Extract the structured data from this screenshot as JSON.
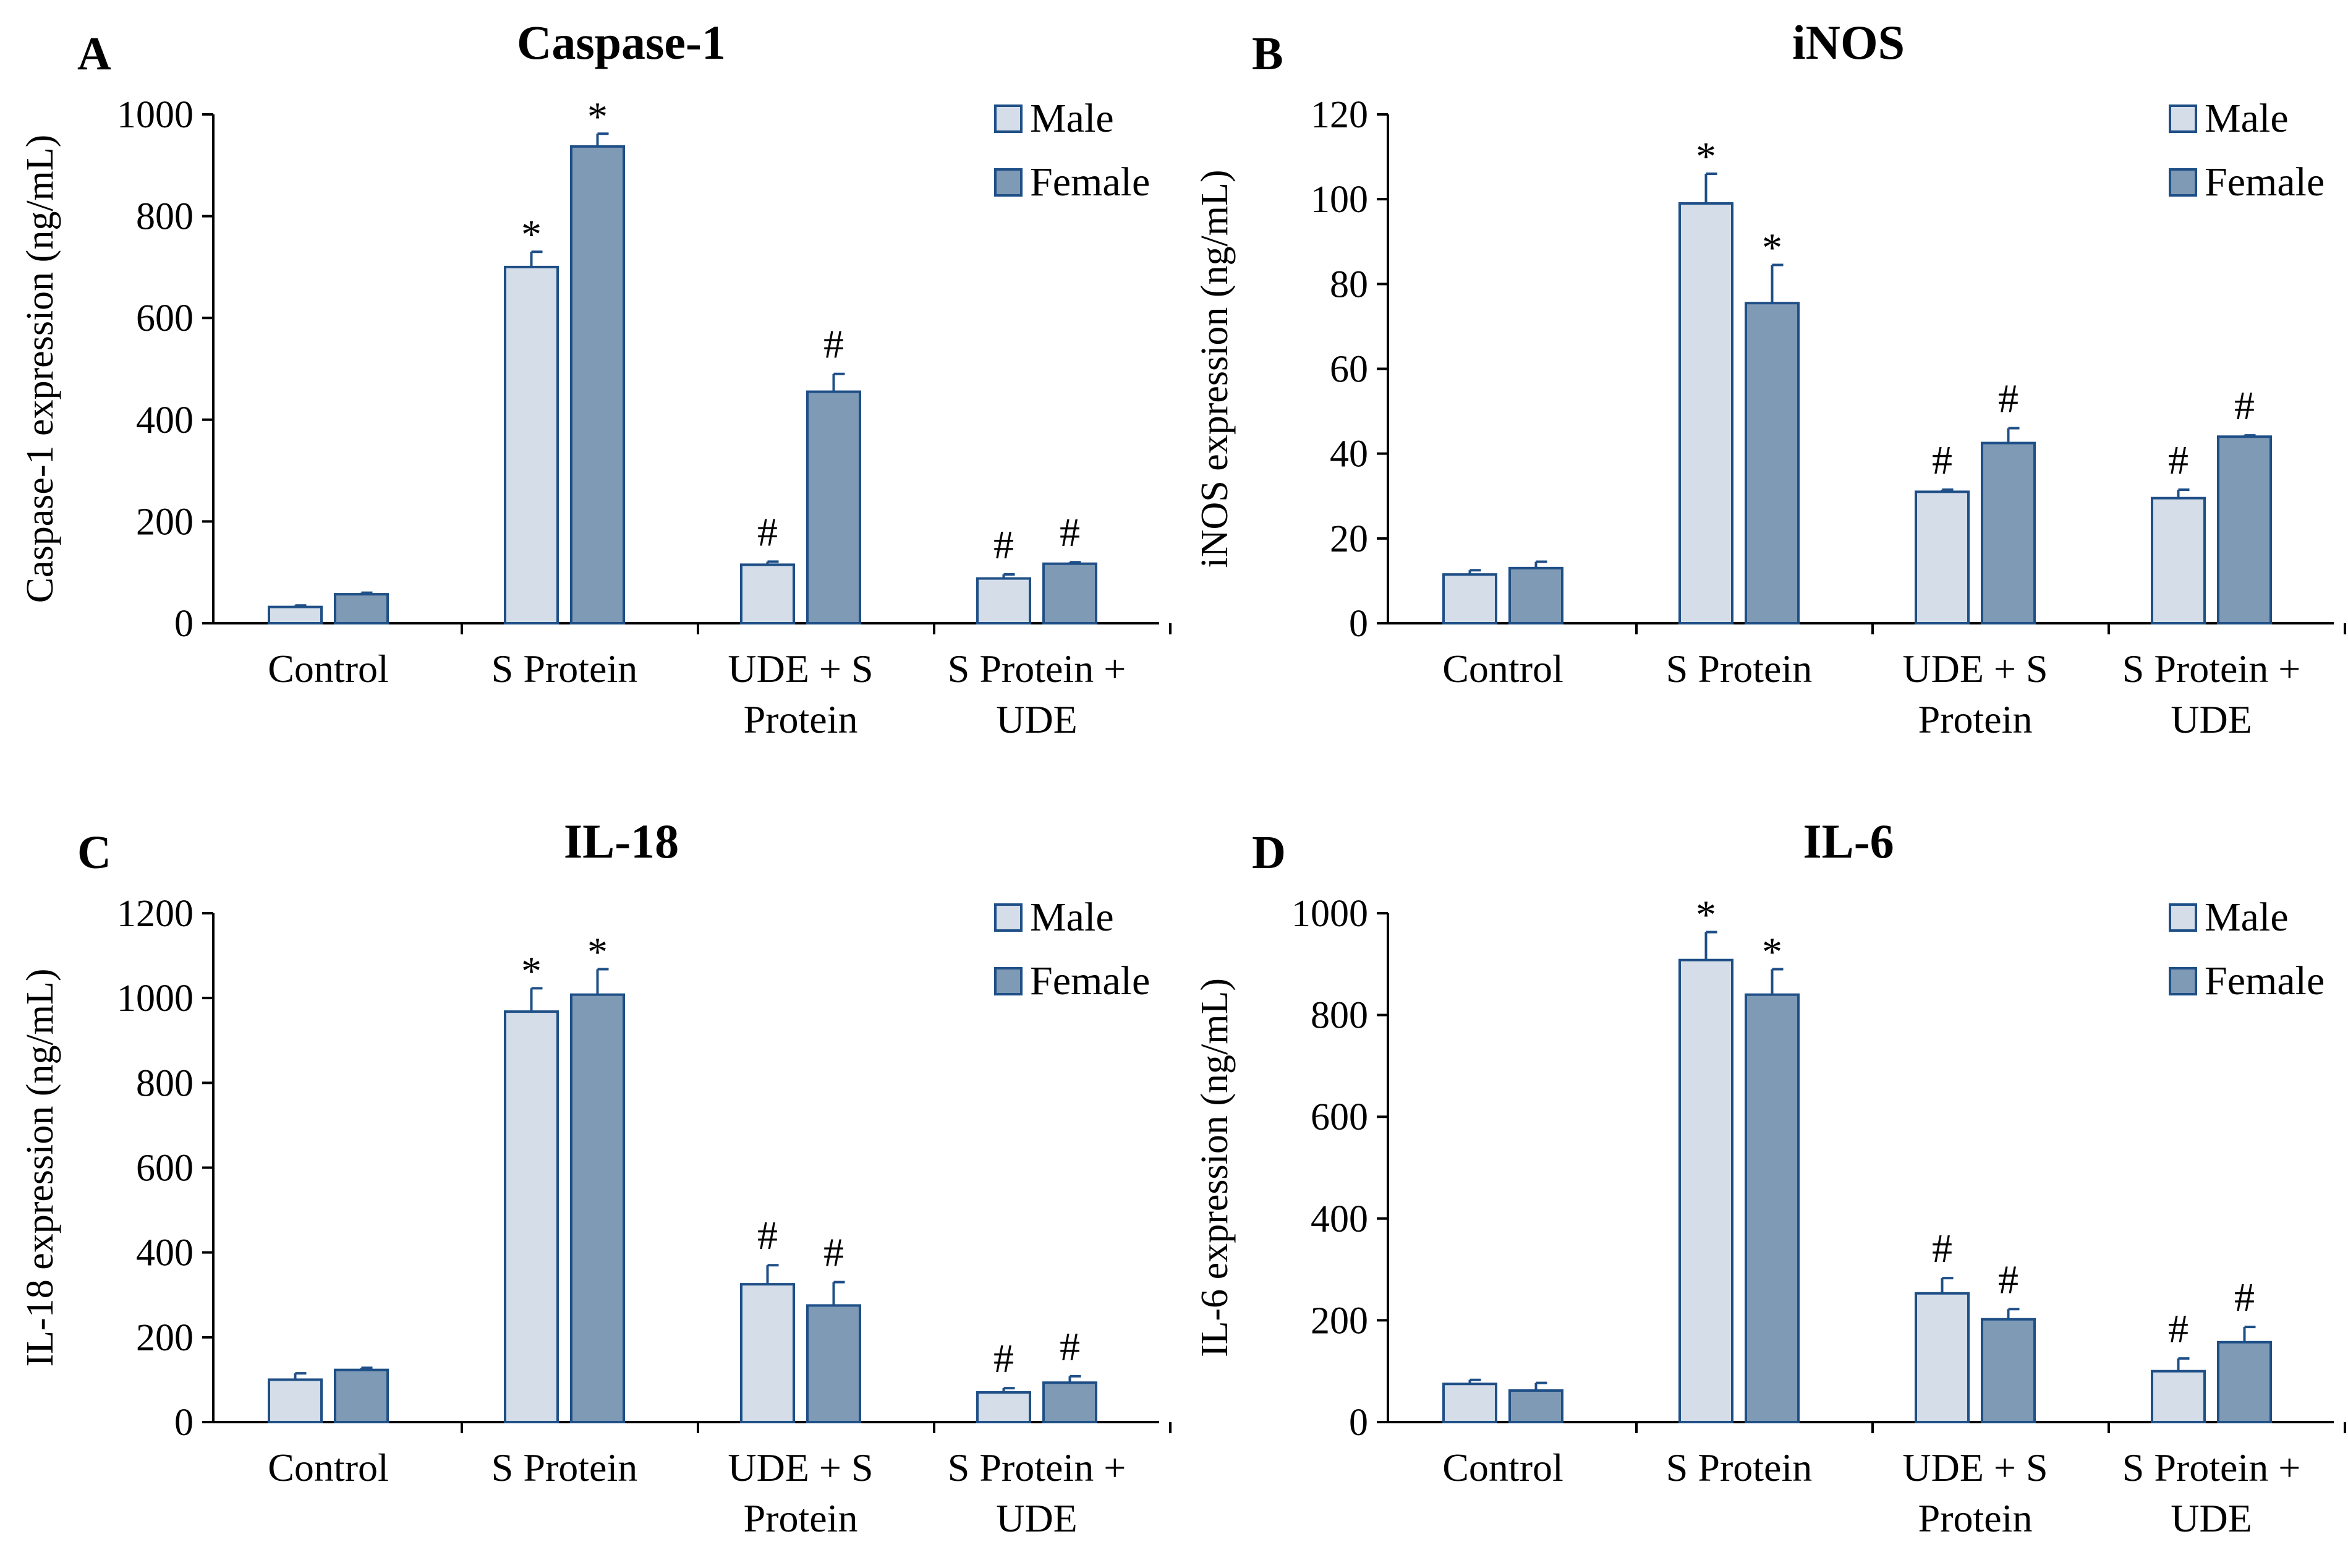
{
  "colors": {
    "male_fill": "#d5dee8",
    "female_fill": "#7f9ab5",
    "bar_stroke": "#1f4f87"
  },
  "chart_data": [
    {
      "panel": "A",
      "type": "bar",
      "title": "Caspase-1",
      "ylabel": "Caspase-1 expression (ng/mL)",
      "ylim": [
        0,
        1000
      ],
      "yticks": [
        "0",
        "200",
        "400",
        "600",
        "800",
        "1000"
      ],
      "categories": [
        [
          "Control"
        ],
        [
          "S Protein"
        ],
        [
          "UDE + S",
          "Protein"
        ],
        [
          "S Protein +",
          "UDE"
        ]
      ],
      "series": [
        {
          "name": "Male",
          "values": [
            32,
            700,
            115,
            88
          ],
          "errors": [
            3,
            30,
            6,
            8
          ],
          "marks": [
            "",
            "*",
            "#",
            "#"
          ]
        },
        {
          "name": "Female",
          "values": [
            57,
            937,
            455,
            117
          ],
          "errors": [
            3,
            25,
            35,
            3
          ],
          "marks": [
            "",
            "*",
            "#",
            "#"
          ]
        }
      ],
      "legend": "top-right"
    },
    {
      "panel": "B",
      "type": "bar",
      "title": "iNOS",
      "ylabel": "iNOS expression (ng/mL)",
      "ylim": [
        0,
        120
      ],
      "yticks": [
        "0",
        "20",
        "40",
        "60",
        "80",
        "100",
        "120"
      ],
      "categories": [
        [
          "Control"
        ],
        [
          "S Protein"
        ],
        [
          "UDE + S",
          "Protein"
        ],
        [
          "S Protein +",
          "UDE"
        ]
      ],
      "series": [
        {
          "name": "Male",
          "values": [
            11.5,
            99,
            31,
            29.5
          ],
          "errors": [
            1,
            7,
            0.5,
            2
          ],
          "marks": [
            "",
            "*",
            "#",
            "#"
          ]
        },
        {
          "name": "Female",
          "values": [
            13,
            75.5,
            42.5,
            44
          ],
          "errors": [
            1.5,
            9,
            3.5,
            0.3
          ],
          "marks": [
            "",
            "*",
            "#",
            "#"
          ]
        }
      ],
      "legend": "top-right"
    },
    {
      "panel": "C",
      "type": "bar",
      "title": "IL-18",
      "ylabel": "IL-18 expression (ng/mL)",
      "ylim": [
        0,
        1200
      ],
      "yticks": [
        "0",
        "200",
        "400",
        "600",
        "800",
        "1000",
        "1200"
      ],
      "categories": [
        [
          "Control"
        ],
        [
          "S Protein"
        ],
        [
          "UDE + S",
          "Protein"
        ],
        [
          "S Protein +",
          "UDE"
        ]
      ],
      "series": [
        {
          "name": "Male",
          "values": [
            100,
            968,
            325,
            70
          ],
          "errors": [
            15,
            55,
            45,
            10
          ],
          "marks": [
            "",
            "*",
            "#",
            "#"
          ]
        },
        {
          "name": "Female",
          "values": [
            123,
            1008,
            275,
            93
          ],
          "errors": [
            5,
            60,
            55,
            15
          ],
          "marks": [
            "",
            "*",
            "#",
            "#"
          ]
        }
      ],
      "legend": "top-right"
    },
    {
      "panel": "D",
      "type": "bar",
      "title": "IL-6",
      "ylabel": "IL-6 expression (ng/mL)",
      "ylim": [
        0,
        1000
      ],
      "yticks": [
        "0",
        "200",
        "400",
        "600",
        "800",
        "1000"
      ],
      "categories": [
        [
          "Control"
        ],
        [
          "S Protein"
        ],
        [
          "UDE + S",
          "Protein"
        ],
        [
          "S Protein +",
          "UDE"
        ]
      ],
      "series": [
        {
          "name": "Male",
          "values": [
            75,
            908,
            253,
            100
          ],
          "errors": [
            8,
            55,
            30,
            25
          ],
          "marks": [
            "",
            "*",
            "#",
            "#"
          ]
        },
        {
          "name": "Female",
          "values": [
            62,
            840,
            202,
            157
          ],
          "errors": [
            15,
            50,
            20,
            30
          ],
          "marks": [
            "",
            "*",
            "#",
            "#"
          ]
        }
      ],
      "legend": "top-right"
    }
  ]
}
